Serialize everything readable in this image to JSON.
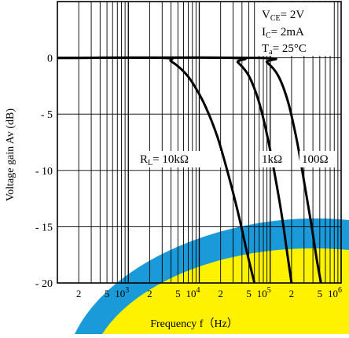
{
  "chart_data": {
    "type": "line",
    "xscale": "log",
    "xlabel": "Frequency f（Hz）",
    "ylabel": "Voltage gain Av (dB)",
    "xlim": [
      100,
      1000000
    ],
    "ylim": [
      -20,
      5
    ],
    "grid": true,
    "conditions": [
      {
        "name": "V",
        "sub": "CE",
        "value": "= 2V"
      },
      {
        "name": "I",
        "sub": "C",
        "value": "= 2mA"
      },
      {
        "name": "T",
        "sub": "a",
        "value": "= 25°C"
      }
    ],
    "y_ticks": [
      {
        "value": 0,
        "label": "0"
      },
      {
        "value": -5,
        "label": "- 5"
      },
      {
        "value": -10,
        "label": "- 10"
      },
      {
        "value": -15,
        "label": "- 15"
      },
      {
        "value": -20,
        "label": "- 20"
      }
    ],
    "x_ticks": [
      {
        "value": 200,
        "label": "2"
      },
      {
        "value": 500,
        "label": "5"
      },
      {
        "value": 1000,
        "label": "10",
        "sup": "3"
      },
      {
        "value": 2000,
        "label": "2"
      },
      {
        "value": 5000,
        "label": "5"
      },
      {
        "value": 10000,
        "label": "10",
        "sup": "4"
      },
      {
        "value": 20000,
        "label": "2"
      },
      {
        "value": 50000,
        "label": "5"
      },
      {
        "value": 100000,
        "label": "10",
        "sup": "5"
      },
      {
        "value": 200000,
        "label": "2"
      },
      {
        "value": 500000,
        "label": "5"
      },
      {
        "value": 1000000,
        "label": "10",
        "sup": "6"
      }
    ],
    "series": [
      {
        "name": "R_L= 10kΩ",
        "label_prefix": "R",
        "label_sub": "L",
        "label_value": "= 10kΩ",
        "x": [
          100,
          3000,
          4000,
          6000,
          8000,
          12000,
          18000,
          26000,
          36000,
          48000,
          60000
        ],
        "y": [
          0,
          0,
          -0.3,
          -1.2,
          -2.2,
          -4.2,
          -7.0,
          -10.5,
          -14.0,
          -17.5,
          -20.0
        ]
      },
      {
        "name": "1kΩ",
        "label_value": "1kΩ",
        "x": [
          100,
          28000,
          35000,
          50000,
          70000,
          95000,
          125000,
          150000,
          175000,
          200000
        ],
        "y": [
          0,
          0,
          -0.4,
          -1.6,
          -4.0,
          -7.5,
          -11.5,
          -14.5,
          -17.5,
          -20.0
        ]
      },
      {
        "name": "100Ω",
        "label_value": "100Ω",
        "x": [
          100,
          70000,
          90000,
          130000,
          180000,
          240000,
          310000,
          380000,
          450000,
          520000
        ],
        "y": [
          0,
          0,
          -0.4,
          -1.6,
          -4.0,
          -7.5,
          -11.5,
          -14.8,
          -17.8,
          -20.0
        ]
      }
    ]
  }
}
